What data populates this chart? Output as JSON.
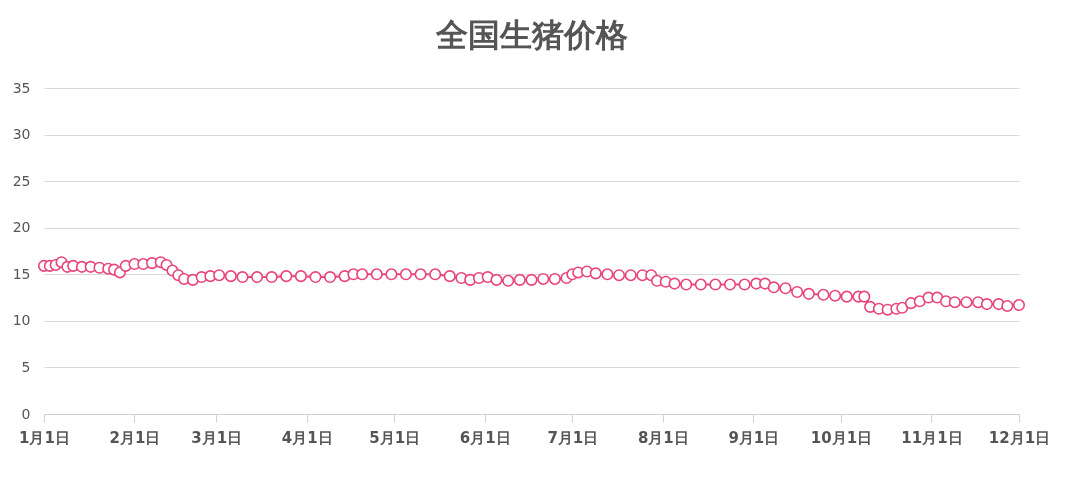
{
  "chart_data": {
    "type": "line",
    "title": "全国生猪价格",
    "x": [
      "--01-01",
      "--01-03",
      "--01-05",
      "--01-07",
      "--01-09",
      "--01-11",
      "--01-14",
      "--01-17",
      "--01-20",
      "--01-23",
      "--01-25",
      "--01-27",
      "--01-29",
      "--02-01",
      "--02-04",
      "--02-07",
      "--02-10",
      "--02-12",
      "--02-14",
      "--02-16",
      "--02-18",
      "--02-21",
      "--02-24",
      "--02-27",
      "--03-02",
      "--03-06",
      "--03-10",
      "--03-15",
      "--03-20",
      "--03-25",
      "--03-30",
      "--04-04",
      "--04-09",
      "--04-14",
      "--04-17",
      "--04-20",
      "--04-25",
      "--04-30",
      "--05-05",
      "--05-10",
      "--05-15",
      "--05-20",
      "--05-24",
      "--05-27",
      "--05-30",
      "--06-02",
      "--06-05",
      "--06-09",
      "--06-13",
      "--06-17",
      "--06-21",
      "--06-25",
      "--06-29",
      "--07-01",
      "--07-03",
      "--07-06",
      "--07-09",
      "--07-13",
      "--07-17",
      "--07-21",
      "--07-25",
      "--07-28",
      "--07-30",
      "--08-02",
      "--08-05",
      "--08-09",
      "--08-14",
      "--08-19",
      "--08-24",
      "--08-29",
      "--09-02",
      "--09-05",
      "--09-08",
      "--09-12",
      "--09-16",
      "--09-20",
      "--09-25",
      "--09-29",
      "--10-03",
      "--10-07",
      "--10-09",
      "--10-11",
      "--10-14",
      "--10-17",
      "--10-20",
      "--10-22",
      "--10-25",
      "--10-28",
      "--10-31",
      "--11-03",
      "--11-06",
      "--11-09",
      "--11-13",
      "--11-17",
      "--11-20",
      "--11-24",
      "--11-27",
      "--12-01"
    ],
    "series": [
      {
        "color": "#e8457a",
        "values": [
          15.9,
          15.9,
          16.0,
          16.3,
          15.8,
          15.9,
          15.8,
          15.8,
          15.7,
          15.6,
          15.5,
          15.2,
          15.9,
          16.1,
          16.1,
          16.2,
          16.3,
          16.0,
          15.4,
          14.9,
          14.5,
          14.4,
          14.7,
          14.8,
          14.9,
          14.8,
          14.7,
          14.7,
          14.7,
          14.8,
          14.8,
          14.7,
          14.7,
          14.8,
          15.0,
          15.0,
          15.0,
          15.0,
          15.0,
          15.0,
          15.0,
          14.8,
          14.6,
          14.4,
          14.6,
          14.7,
          14.4,
          14.3,
          14.4,
          14.4,
          14.5,
          14.5,
          14.6,
          15.0,
          15.2,
          15.3,
          15.1,
          15.0,
          14.9,
          14.9,
          14.9,
          14.9,
          14.3,
          14.2,
          14.0,
          13.9,
          13.9,
          13.9,
          13.9,
          13.9,
          14.0,
          14.0,
          13.6,
          13.5,
          13.1,
          12.9,
          12.8,
          12.7,
          12.6,
          12.6,
          12.6,
          11.5,
          11.3,
          11.2,
          11.3,
          11.4,
          11.9,
          12.1,
          12.5,
          12.5,
          12.1,
          12.0,
          12.0,
          12.0,
          11.8,
          11.8,
          11.6,
          11.7
        ]
      }
    ],
    "xlim": [
      "--01-01",
      "--12-01"
    ],
    "xticks": [
      {
        "value": "--01-01",
        "label": "1月1日"
      },
      {
        "value": "--02-01",
        "label": "2月1日"
      },
      {
        "value": "--03-01",
        "label": "3月1日"
      },
      {
        "value": "--04-01",
        "label": "4月1日"
      },
      {
        "value": "--05-01",
        "label": "5月1日"
      },
      {
        "value": "--06-01",
        "label": "6月1日"
      },
      {
        "value": "--07-01",
        "label": "7月1日"
      },
      {
        "value": "--08-01",
        "label": "8月1日"
      },
      {
        "value": "--09-01",
        "label": "9月1日"
      },
      {
        "value": "--10-01",
        "label": "10月1日"
      },
      {
        "value": "--11-01",
        "label": "11月1日"
      },
      {
        "value": "--12-01",
        "label": "12月1日"
      }
    ],
    "ylim": [
      0,
      35
    ],
    "yticks": [
      0,
      5,
      10,
      15,
      20,
      25,
      30,
      35
    ],
    "grid": "y",
    "marker": "circle",
    "line_style": "solid"
  }
}
